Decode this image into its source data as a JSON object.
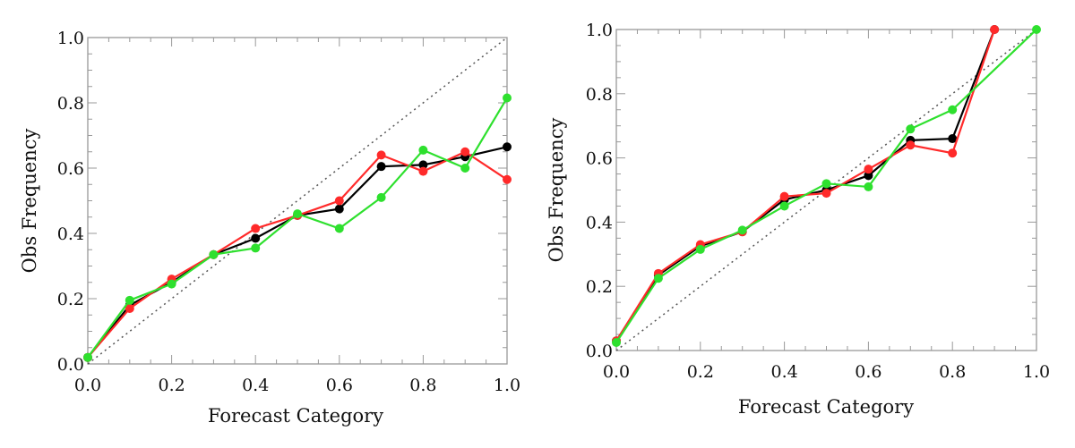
{
  "chart_data": [
    {
      "type": "line",
      "title": "",
      "xlabel": "Forecast Category",
      "ylabel": "Obs Frequency",
      "xlim": [
        0,
        1
      ],
      "ylim": [
        0,
        1
      ],
      "xticks": [
        "0.0",
        "0.2",
        "0.4",
        "0.6",
        "0.8",
        "1.0"
      ],
      "yticks": [
        "0.0",
        "0.2",
        "0.4",
        "0.6",
        "0.8",
        "1.0"
      ],
      "x": [
        0.0,
        0.1,
        0.2,
        0.3,
        0.4,
        0.5,
        0.6,
        0.7,
        0.8,
        0.9,
        1.0
      ],
      "reference_line": "diagonal dotted",
      "series": [
        {
          "name": "black",
          "color": "#000000",
          "values": [
            0.02,
            0.18,
            0.25,
            0.335,
            0.385,
            0.455,
            0.475,
            0.605,
            0.61,
            0.635,
            0.665
          ]
        },
        {
          "name": "red",
          "color": "#ff2a2a",
          "values": [
            0.02,
            0.17,
            0.26,
            0.335,
            0.415,
            0.455,
            0.5,
            0.64,
            0.59,
            0.65,
            0.565
          ]
        },
        {
          "name": "green",
          "color": "#2ee02e",
          "values": [
            0.02,
            0.195,
            0.245,
            0.335,
            0.355,
            0.46,
            0.415,
            0.51,
            0.655,
            0.6,
            0.815
          ]
        }
      ]
    },
    {
      "type": "line",
      "title": "",
      "xlabel": "Forecast Category",
      "ylabel": "Obs Frequency",
      "xlim": [
        0,
        1
      ],
      "ylim": [
        0,
        1
      ],
      "xticks": [
        "0.0",
        "0.2",
        "0.4",
        "0.6",
        "0.8",
        "1.0"
      ],
      "yticks": [
        "0.0",
        "0.2",
        "0.4",
        "0.6",
        "0.8",
        "1.0"
      ],
      "x": [
        0.0,
        0.1,
        0.2,
        0.3,
        0.4,
        0.5,
        0.6,
        0.7,
        0.8,
        0.9,
        1.0
      ],
      "reference_line": "diagonal dotted",
      "series": [
        {
          "name": "black",
          "color": "#000000",
          "values": [
            0.03,
            0.235,
            0.325,
            0.37,
            0.47,
            0.5,
            0.545,
            0.655,
            0.66,
            1.0,
            null
          ]
        },
        {
          "name": "red",
          "color": "#ff2a2a",
          "values": [
            0.03,
            0.24,
            0.33,
            0.37,
            0.48,
            0.49,
            0.565,
            0.64,
            0.615,
            1.0,
            null
          ]
        },
        {
          "name": "green",
          "color": "#2ee02e",
          "values": [
            0.025,
            0.225,
            0.315,
            0.375,
            0.45,
            0.52,
            0.51,
            0.69,
            0.75,
            null,
            1.0
          ]
        }
      ]
    }
  ]
}
